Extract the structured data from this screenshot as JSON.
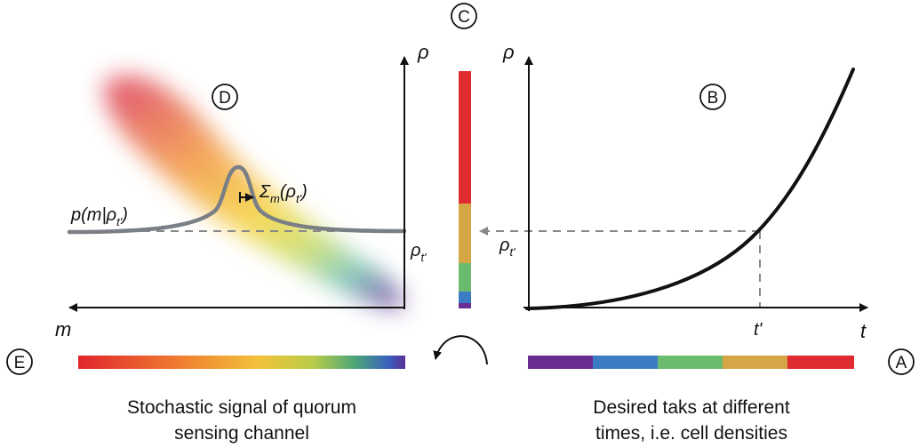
{
  "markers": {
    "a": "A",
    "b": "B",
    "c": "C",
    "d": "D",
    "e": "E"
  },
  "left_panel": {
    "x_axis_label": "m",
    "y_axis_label": "ρ",
    "rho_tick": "ρt'",
    "distribution_label": "p(m|ρt')",
    "width_label": "Σm(ρt')",
    "caption_line1": "Stochastic signal of quorum",
    "caption_line2": "sensing channel"
  },
  "right_panel": {
    "x_axis_label": "t",
    "y_axis_label": "ρ",
    "rho_tick": "ρt'",
    "t_tick": "t'",
    "caption_line1": "Desired taks at different",
    "caption_line2": "times, i.e. cell densities"
  },
  "task_colors": [
    "#6a2c91",
    "#3b7cc4",
    "#6bbb6e",
    "#d4a646",
    "#e02b30"
  ],
  "signal_gradient": [
    "#e0262c",
    "#ef7a30",
    "#f2c23a",
    "#b8cc4a",
    "#4aa37a",
    "#3a5fc0",
    "#5a2f94"
  ]
}
